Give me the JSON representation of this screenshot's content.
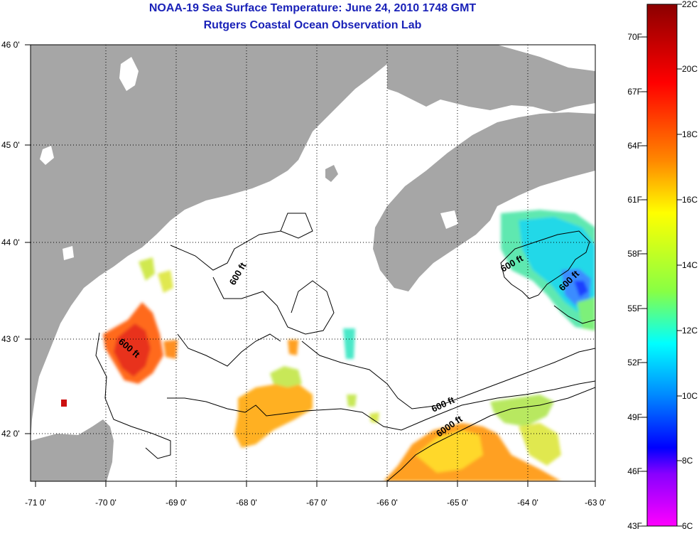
{
  "title": {
    "line1": "NOAA-19 Sea Surface Temperature:  June 24, 2010 1748 GMT",
    "line2": "Rutgers Coastal Ocean Observation Lab"
  },
  "axes": {
    "x_ticks": [
      "-71 0'",
      "-70 0'",
      "-69 0'",
      "-68 0'",
      "-67 0'",
      "-66 0'",
      "-65 0'",
      "-64 0'",
      "-63 0'"
    ],
    "y_ticks": [
      "46 0'",
      "45 0'",
      "44 0'",
      "43 0'",
      "42 0'"
    ]
  },
  "contours": {
    "labels": [
      "600 ft",
      "600 ft",
      "600 ft",
      "600 ft",
      "600 ft",
      "6000 ft"
    ]
  },
  "colorbar": {
    "fahrenheit": [
      "70F",
      "67F",
      "64F",
      "61F",
      "58F",
      "55F",
      "52F",
      "49F",
      "46F",
      "43F"
    ],
    "celsius": [
      "22C",
      "20C",
      "18C",
      "16C",
      "14C",
      "12C",
      "10C",
      "8C",
      "6C"
    ],
    "stops": [
      "#8b0000",
      "#ff0000",
      "#ff8800",
      "#ffff00",
      "#88ff44",
      "#00ffff",
      "#0088ff",
      "#0000ff",
      "#8800ff",
      "#ff00ff"
    ]
  },
  "colors": {
    "land": "#a6a6a6",
    "water": "#ffffff",
    "title": "#1a22b8"
  }
}
